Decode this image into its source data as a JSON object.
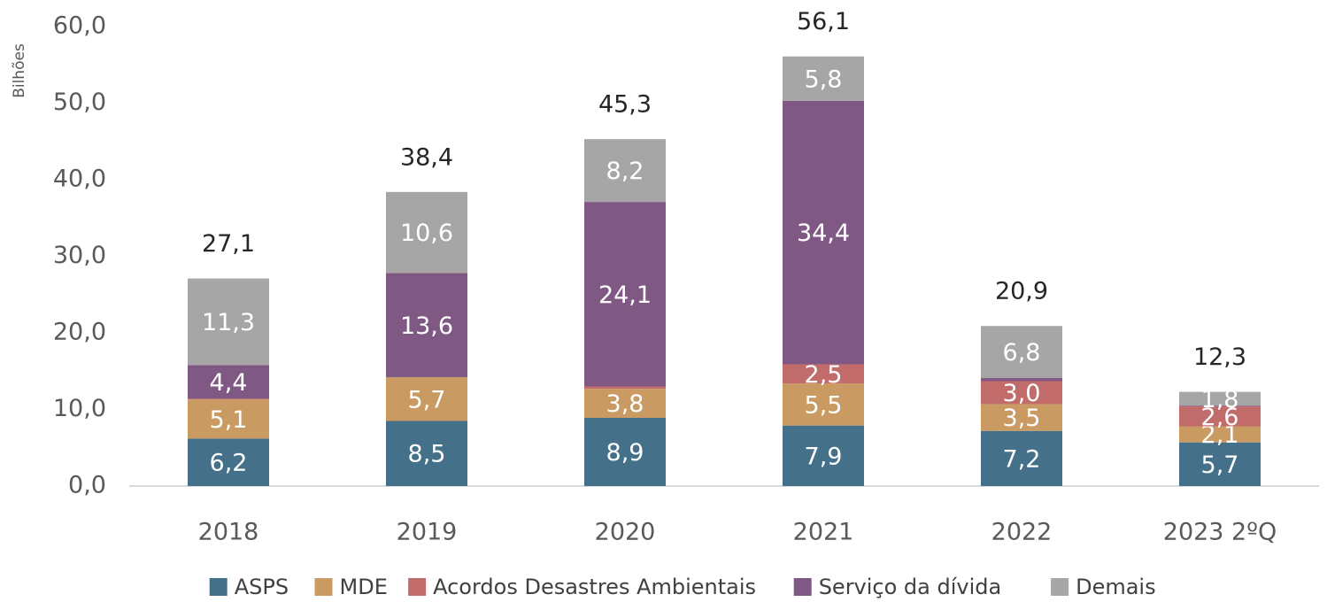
{
  "chart_data": {
    "type": "stacked_bar",
    "y_axis_label": "Bilhões",
    "categories": [
      "2018",
      "2019",
      "2020",
      "2021",
      "2022",
      "2023 2ºQ"
    ],
    "series": [
      {
        "name": "ASPS",
        "color": "#44708a",
        "values": [
          6.2,
          8.5,
          8.9,
          7.9,
          7.2,
          5.7
        ],
        "value_labels": [
          "6,2",
          "8,5",
          "8,9",
          "7,9",
          "7,2",
          "5,7"
        ]
      },
      {
        "name": "MDE",
        "color": "#c99a62",
        "values": [
          5.1,
          5.7,
          3.8,
          5.5,
          3.5,
          2.1
        ],
        "value_labels": [
          "5,1",
          "5,7",
          "3,8",
          "5,5",
          "3,5",
          "2,1"
        ]
      },
      {
        "name": "Acordos Desastres Ambientais",
        "color": "#c26b6b",
        "values": [
          0.1,
          0,
          0.3,
          2.5,
          3.0,
          2.6
        ],
        "value_labels": [
          null,
          null,
          null,
          "2,5",
          "3,0",
          "2,6"
        ]
      },
      {
        "name": "Serviço da dívida",
        "color": "#805884",
        "values": [
          4.4,
          13.6,
          24.1,
          34.4,
          0.4,
          0.1
        ],
        "value_labels": [
          "4,4",
          "13,6",
          "24,1",
          "34,4",
          null,
          null
        ]
      },
      {
        "name": "Demais",
        "color": "#a6a6a6",
        "values": [
          11.3,
          10.6,
          8.2,
          5.8,
          6.8,
          1.8
        ],
        "value_labels": [
          "11,3",
          "10,6",
          "8,2",
          "5,8",
          "6,8",
          "1,8"
        ]
      }
    ],
    "totals": [
      27.1,
      38.4,
      45.3,
      56.1,
      20.9,
      12.3
    ],
    "total_labels": [
      "27,1",
      "38,4",
      "45,3",
      "56,1",
      "20,9",
      "12,3"
    ],
    "ylim": [
      0,
      60
    ],
    "yticks": [
      {
        "value": 0,
        "label": "0,0"
      },
      {
        "value": 10,
        "label": "10,0"
      },
      {
        "value": 20,
        "label": "20,0"
      },
      {
        "value": 30,
        "label": "30,0"
      },
      {
        "value": 40,
        "label": "40,0"
      },
      {
        "value": 50,
        "label": "50,0"
      },
      {
        "value": 60,
        "label": "60,0"
      }
    ],
    "legend": "bottom"
  }
}
